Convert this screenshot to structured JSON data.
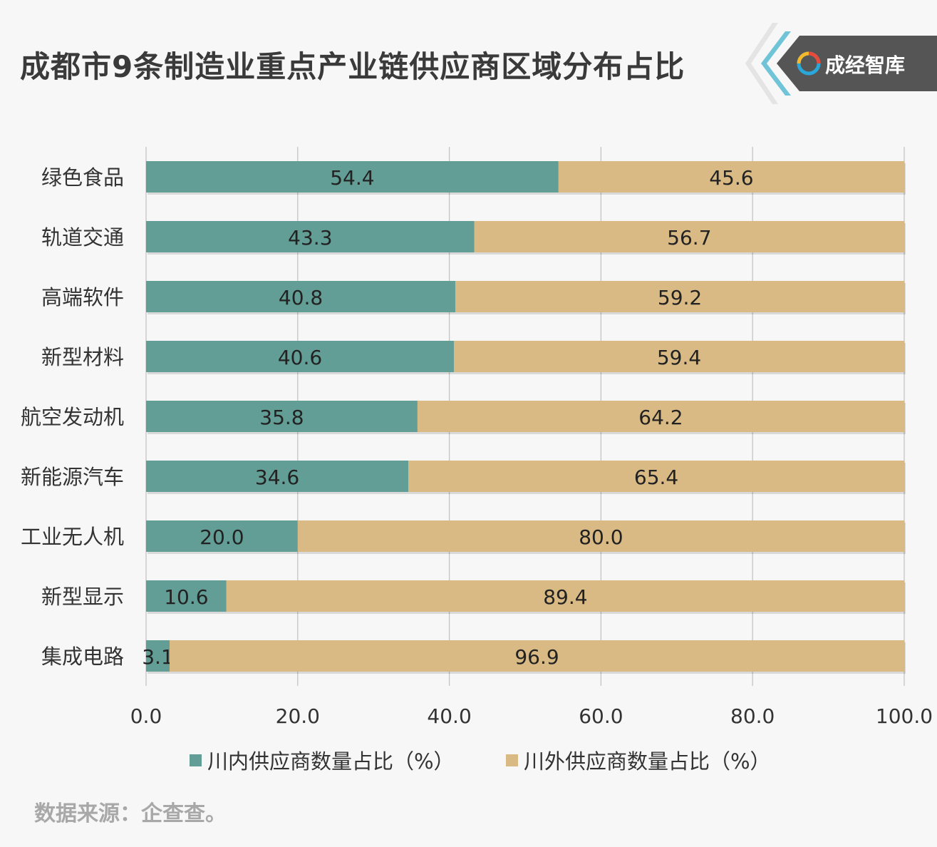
{
  "title": "成都市9条制造业重点产业链供应商区域分布占比",
  "brand": {
    "name": "成经智库",
    "logo_icon": "swirl-logo-icon"
  },
  "legend": [
    {
      "label": "川内供应商数量占比（%）",
      "color": "#629e96"
    },
    {
      "label": "川外供应商数量占比（%）",
      "color": "#d9ba84"
    }
  ],
  "source": "数据来源：企查查。",
  "chart_data": {
    "type": "bar",
    "orientation": "horizontal",
    "stacked": true,
    "categories": [
      "绿色食品",
      "轨道交通",
      "高端软件",
      "新型材料",
      "航空发动机",
      "新能源汽车",
      "工业无人机",
      "新型显示",
      "集成电路"
    ],
    "series": [
      {
        "name": "川内供应商数量占比（%）",
        "color": "#629e96",
        "values": [
          54.4,
          43.3,
          40.8,
          40.6,
          35.8,
          34.6,
          20.0,
          10.6,
          3.1
        ]
      },
      {
        "name": "川外供应商数量占比（%）",
        "color": "#d9ba84",
        "values": [
          45.6,
          56.7,
          59.2,
          59.4,
          64.2,
          65.4,
          80.0,
          89.4,
          96.9
        ]
      }
    ],
    "xlim": [
      0,
      100
    ],
    "xticks": [
      "0.0",
      "20.0",
      "40.0",
      "60.0",
      "80.0",
      "100.0"
    ],
    "grid": true,
    "legend_position": "bottom"
  }
}
